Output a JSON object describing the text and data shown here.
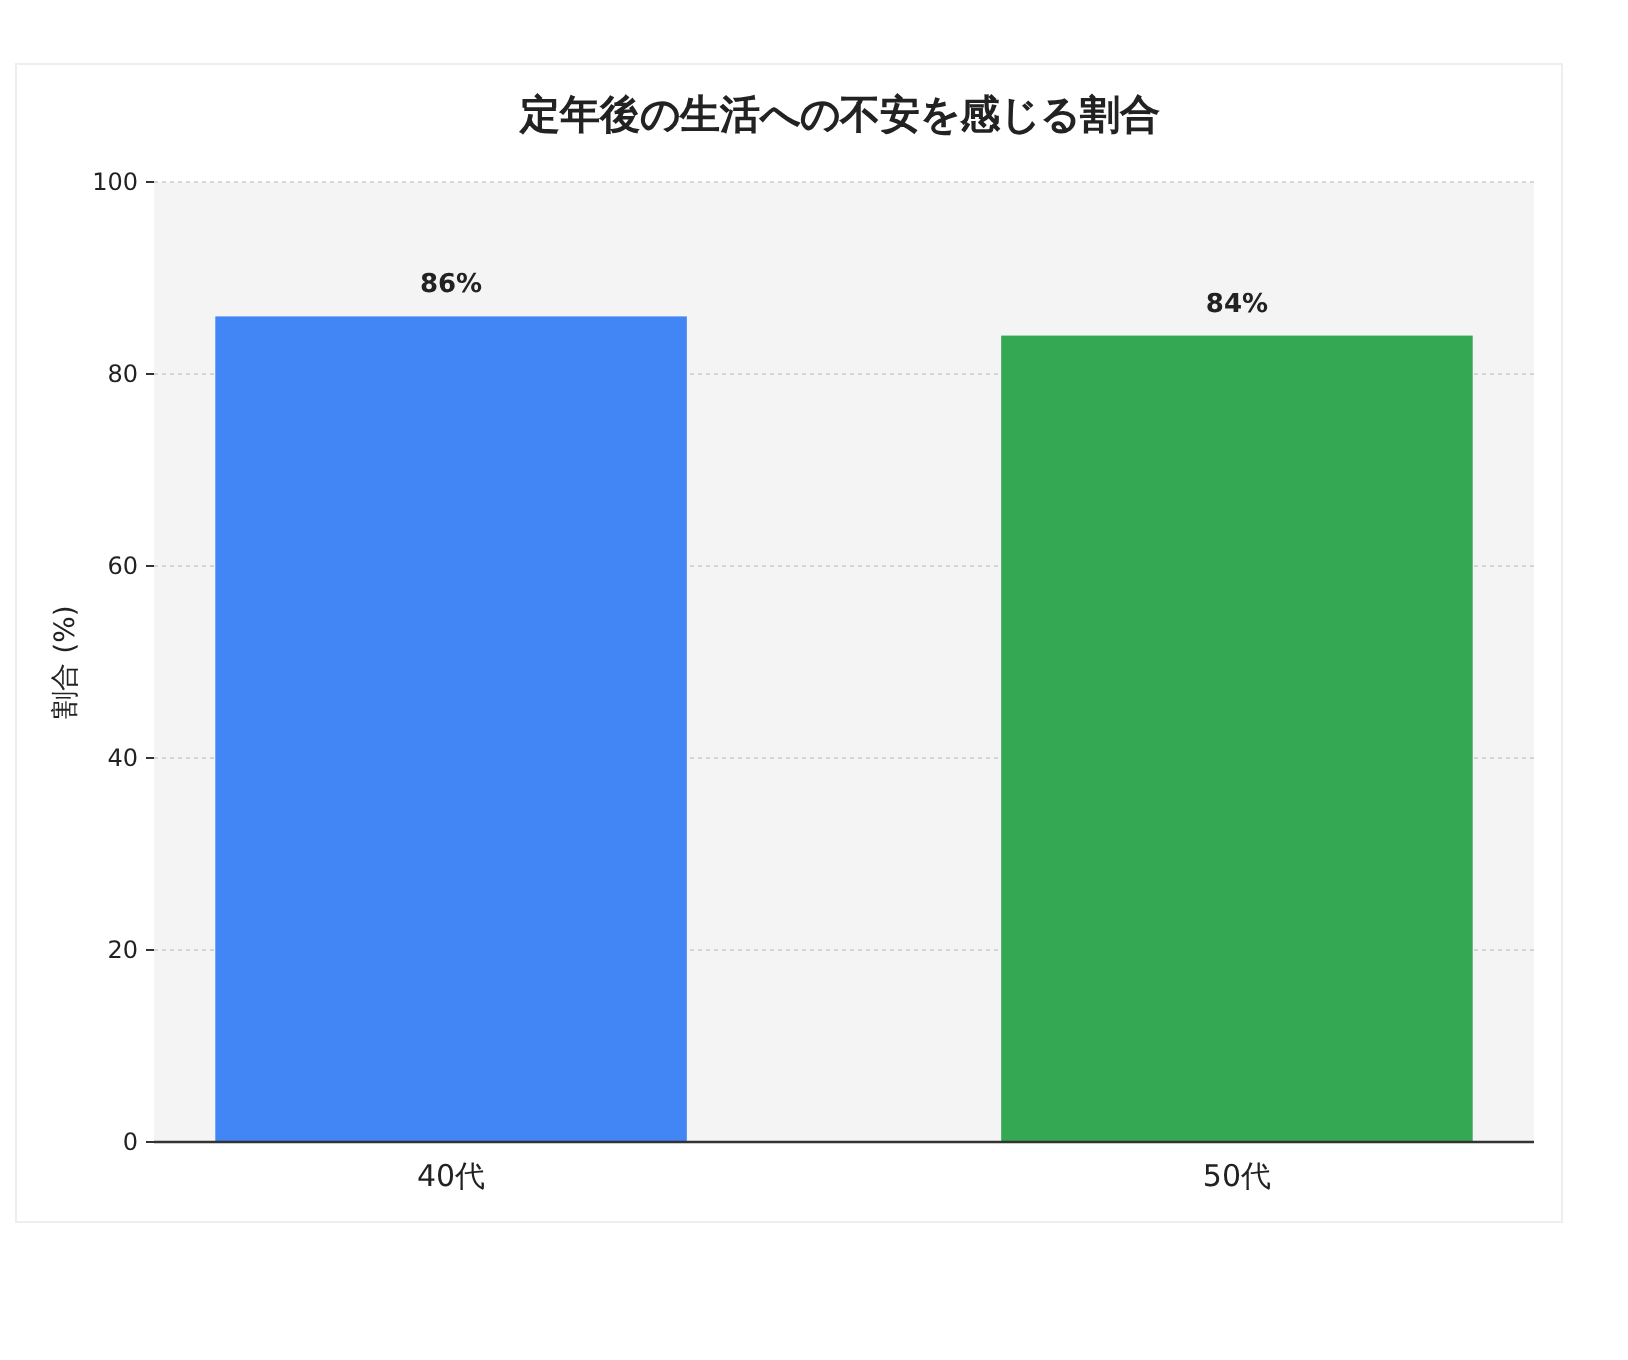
{
  "chart_data": {
    "type": "bar",
    "title": "定年後の生活への不安を感じる割合",
    "ylabel": "割合 (%)",
    "categories": [
      "40代",
      "50代"
    ],
    "values": [
      86,
      84
    ],
    "colors": [
      "#4285f4",
      "#34a853"
    ],
    "value_labels": [
      "86%",
      "84%"
    ],
    "ylim": [
      0,
      100
    ],
    "yticks": [
      0,
      20,
      40,
      60,
      80,
      100
    ],
    "grid": "y"
  }
}
